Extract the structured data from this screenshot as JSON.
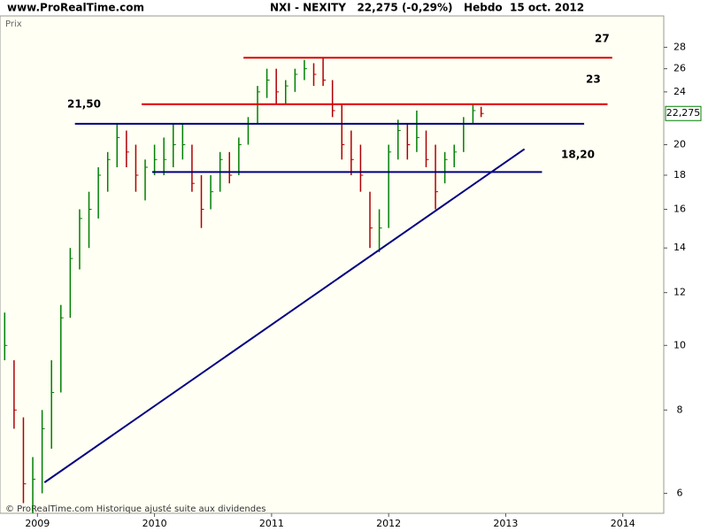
{
  "chart_data": {
    "type": "ohlc",
    "source": "www.ProRealTime.com",
    "title": "NXI - NEXITY   22,275 (-0,29%)   Hebdo  15 oct. 2012",
    "y_label": "Prix",
    "footer": "© ProRealTime.com Historique ajusté suite aux dividendes",
    "last_price": {
      "value": 22.275,
      "label": "22,275"
    },
    "log_scale": true,
    "grid": false,
    "up_color": "#008000",
    "down_color": "#b00000",
    "xlim": [
      2008.68,
      2014.35
    ],
    "xticks": [
      2009,
      2010,
      2011,
      2012,
      2013,
      2014
    ],
    "ylim": [
      5.6,
      31.2
    ],
    "yticks": [
      6,
      8,
      10,
      12,
      14,
      16,
      18,
      20,
      24,
      26,
      28
    ],
    "x": [
      2008.72,
      2008.8,
      2008.88,
      2008.96,
      2009.04,
      2009.12,
      2009.2,
      2009.28,
      2009.36,
      2009.44,
      2009.52,
      2009.6,
      2009.68,
      2009.76,
      2009.84,
      2009.92,
      2010.0,
      2010.08,
      2010.16,
      2010.24,
      2010.32,
      2010.4,
      2010.48,
      2010.56,
      2010.64,
      2010.72,
      2010.8,
      2010.88,
      2010.96,
      2011.04,
      2011.12,
      2011.2,
      2011.28,
      2011.36,
      2011.44,
      2011.52,
      2011.6,
      2011.68,
      2011.76,
      2011.84,
      2011.92,
      2012.0,
      2012.08,
      2012.16,
      2012.24,
      2012.32,
      2012.4,
      2012.48,
      2012.56,
      2012.64,
      2012.72,
      2012.79
    ],
    "high": [
      11.2,
      9.5,
      7.8,
      6.8,
      8,
      9.5,
      11.5,
      14,
      16,
      17,
      18.5,
      19.5,
      21.5,
      21,
      20,
      19,
      20,
      20.5,
      21.5,
      21.5,
      20,
      18,
      18,
      19.5,
      19.5,
      20.5,
      22,
      24.5,
      26,
      26,
      25,
      26,
      26.8,
      26.5,
      27,
      25,
      23,
      21,
      20,
      17,
      16,
      20,
      21.8,
      21.5,
      22.5,
      21,
      20,
      19.5,
      20,
      22,
      23,
      22.8
    ],
    "low": [
      9.5,
      7.5,
      5.8,
      5.6,
      6,
      7,
      8.5,
      11,
      13,
      14,
      15.5,
      17,
      18.5,
      18.5,
      17,
      16.5,
      18,
      18,
      18.5,
      19,
      17,
      15,
      16,
      17,
      17.5,
      18,
      20,
      21.5,
      23.5,
      23,
      23,
      24,
      25,
      24.5,
      24.5,
      22,
      19,
      18,
      17,
      14,
      13.8,
      15,
      19,
      19,
      19.5,
      18.5,
      16,
      17.5,
      18.5,
      19.5,
      21.5,
      22
    ],
    "close": [
      10,
      8,
      6.2,
      6.3,
      7.5,
      8.5,
      11,
      13.5,
      15.5,
      16,
      18,
      19,
      20.5,
      19.5,
      18,
      18.5,
      19,
      19,
      20,
      20,
      17.5,
      16,
      17,
      19,
      18,
      20,
      21.5,
      24,
      25,
      24,
      24.5,
      25.5,
      26,
      25.5,
      25,
      22.5,
      20,
      19,
      18,
      15,
      15,
      19.5,
      21,
      20,
      20.5,
      19,
      17,
      19,
      19.5,
      21.5,
      22.5,
      22.275
    ],
    "lines": [
      {
        "value": 27,
        "x": [
          2010.76,
          2013.91
        ],
        "color": "#e00000"
      },
      {
        "value": 23,
        "x": [
          2009.89,
          2013.87
        ],
        "color": "#e00000"
      },
      {
        "value": 21.5,
        "x": [
          2009.32,
          2013.67
        ],
        "color": "#000080"
      },
      {
        "value": 18.2,
        "x": [
          2009.98,
          2013.31
        ],
        "color": "#000080"
      }
    ],
    "trendline": {
      "x": [
        2009.06,
        2013.16
      ],
      "y": [
        6.23,
        19.7
      ],
      "color": "#000080"
    },
    "annotations": [
      "27",
      "23",
      "21,50",
      "18,20"
    ]
  }
}
